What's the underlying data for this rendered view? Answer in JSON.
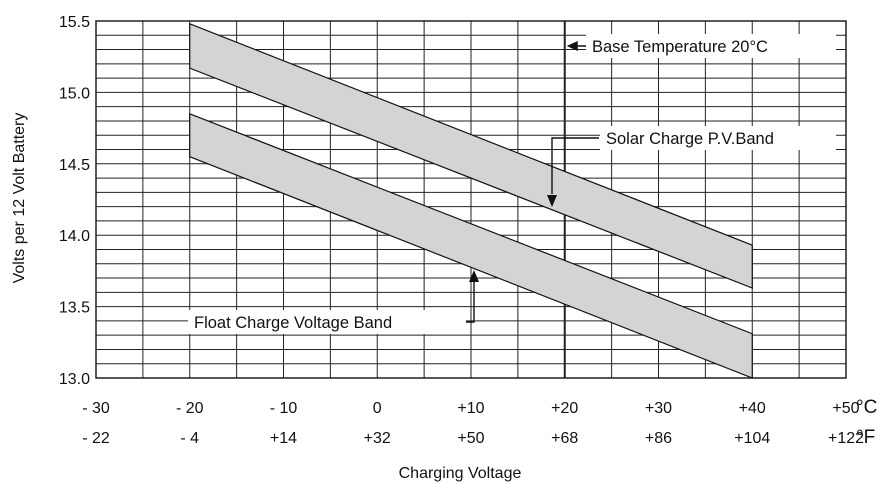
{
  "chart_data": {
    "type": "area",
    "title": "",
    "xlabel": "Charging Voltage",
    "ylabel": "Volts per 12 Volt Battery",
    "xlim": [
      -30,
      50
    ],
    "ylim": [
      13.0,
      15.5
    ],
    "y_ticks": [
      "13.0",
      "13.5",
      "14.0",
      "14.5",
      "15.0",
      "15.5"
    ],
    "x_tick_values": [
      -30,
      -20,
      -10,
      0,
      10,
      20,
      30,
      40,
      50
    ],
    "x_ticks_c": [
      "- 30",
      "- 20",
      "- 10",
      "0",
      "+10",
      "+20",
      "+30",
      "+40",
      "+50"
    ],
    "x_ticks_f": [
      "- 22",
      "- 4",
      "+14",
      "+32",
      "+50",
      "+68",
      "+86",
      "+104",
      "+122"
    ],
    "unit_c": "°C",
    "unit_f": "°F",
    "grid": true,
    "series": [
      {
        "name": "Solar Charge P.V.Band",
        "x": [
          -20,
          40
        ],
        "upper": [
          15.48,
          13.93
        ],
        "lower": [
          15.17,
          13.63
        ]
      },
      {
        "name": "Float  Charge Voltage Band",
        "x": [
          -20,
          40
        ],
        "upper": [
          14.85,
          13.31
        ],
        "lower": [
          14.55,
          13.0
        ]
      }
    ],
    "annotations": [
      {
        "text": "Base Temperature 20°C",
        "x": 20
      }
    ]
  }
}
